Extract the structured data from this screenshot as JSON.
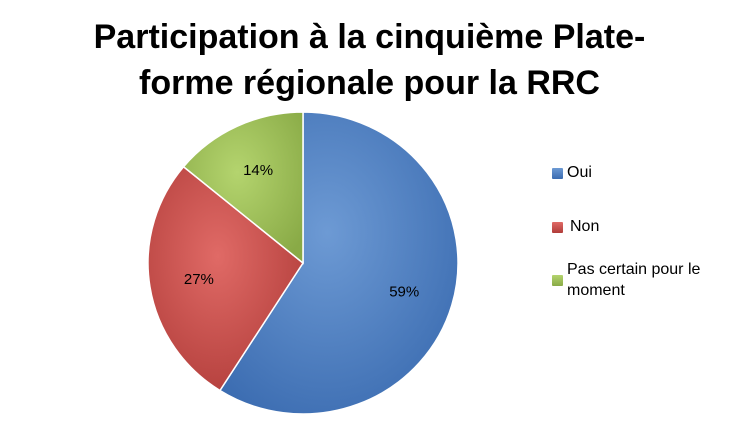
{
  "chart_data": {
    "type": "pie",
    "title_lines": [
      "Participation à la cinquième Plate-",
      "forme régionale pour la RRC"
    ],
    "categories": [
      "Oui",
      "Non",
      "Pas certain pour le moment"
    ],
    "values": [
      59,
      27,
      14
    ],
    "data_labels": [
      "59%",
      "27%",
      "14%"
    ],
    "colors": [
      "#4f81bd",
      "#c0504d",
      "#9bbb59"
    ],
    "legend_placement": "right",
    "legend": [
      "Oui",
      "Non",
      "Pas certain pour le moment"
    ],
    "legend_lines": [
      [
        "Oui"
      ],
      [
        "Non"
      ],
      [
        "Pas certain pour le",
        "moment"
      ]
    ]
  }
}
